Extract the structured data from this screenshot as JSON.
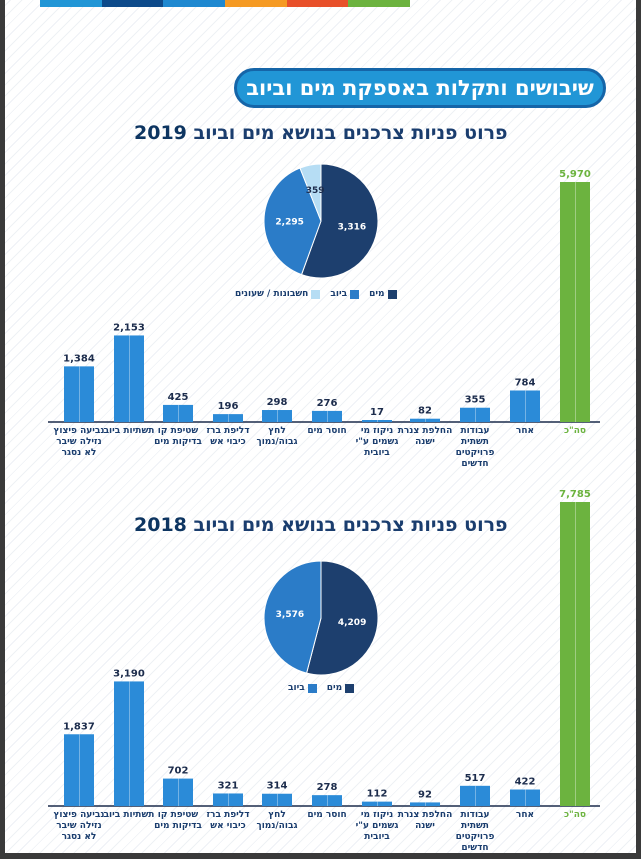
{
  "banner": {
    "title": "שיבושים ותקלות באספקת מים וביוב"
  },
  "colors": {
    "strip": [
      "#2196d6",
      "#0d4a8a",
      "#1e88d0",
      "#f59a23",
      "#e8502a",
      "#6cb33f"
    ],
    "bar": "#2b8bd8",
    "bar_dark": "#1a6db8",
    "total": "#6cb33f",
    "water": "#1d3f6e",
    "sewage": "#2b7cc8",
    "bills": "#b6ddf4"
  },
  "chart_data": [
    {
      "type": "bar",
      "title": "פרוט פניות צרכנים בנושא מים וביוב",
      "year": "2019",
      "categories": [
        "סה\"כ",
        "אחר",
        "עבודות תשתית פרויקטים חדשים",
        "החלפת צנרת ישנה",
        "ניקוז מי גשמים ע\"י ביובית",
        "חוסר מים",
        "לחץ גבוה/נמוך",
        "דליפת ברז כיבוי אש",
        "שטיפת קו בדיקות מים",
        "תשתיות ביוב",
        "נביעה פיצוץ נזילה שיבר לא נסגר"
      ],
      "labels": [
        "5,970",
        "784",
        "355",
        "82",
        "17",
        "276",
        "298",
        "196",
        "425",
        "2,153",
        "1,384"
      ],
      "values": [
        5970,
        784,
        355,
        82,
        17,
        276,
        298,
        196,
        425,
        2153,
        1384
      ],
      "ylim": [
        0,
        5970
      ],
      "pie": {
        "type": "pie",
        "labels": [
          "מים",
          "ביוב",
          "חשבונות / שעונים"
        ],
        "values": [
          3316,
          2295,
          359
        ],
        "value_labels": [
          "3,316",
          "2,295",
          "359"
        ]
      }
    },
    {
      "type": "bar",
      "title": "פרוט פניות צרכנים בנושא מים וביוב",
      "year": "2018",
      "categories": [
        "סה\"כ",
        "אחר",
        "עבודות תשתית פרויקטים חדשים",
        "החלפת צנרת ישנה",
        "ניקוז מי גשמים ע\"י ביובית",
        "חוסר מים",
        "לחץ גבוה/נמוך",
        "דליפת ברז כיבוי אש",
        "שטיפת קו בדיקות מים",
        "תשתיות ביוב",
        "נביעה פיצוץ נזילה שיבר לא נסגר"
      ],
      "labels": [
        "7,785",
        "422",
        "517",
        "92",
        "112",
        "278",
        "314",
        "321",
        "702",
        "3,190",
        "1,837"
      ],
      "values": [
        7785,
        422,
        517,
        92,
        112,
        278,
        314,
        321,
        702,
        3190,
        1837
      ],
      "ylim": [
        0,
        7785
      ],
      "pie": {
        "type": "pie",
        "labels": [
          "מים",
          "ביוב"
        ],
        "values": [
          4209,
          3576
        ],
        "value_labels": [
          "4,209",
          "3,576"
        ]
      }
    }
  ]
}
